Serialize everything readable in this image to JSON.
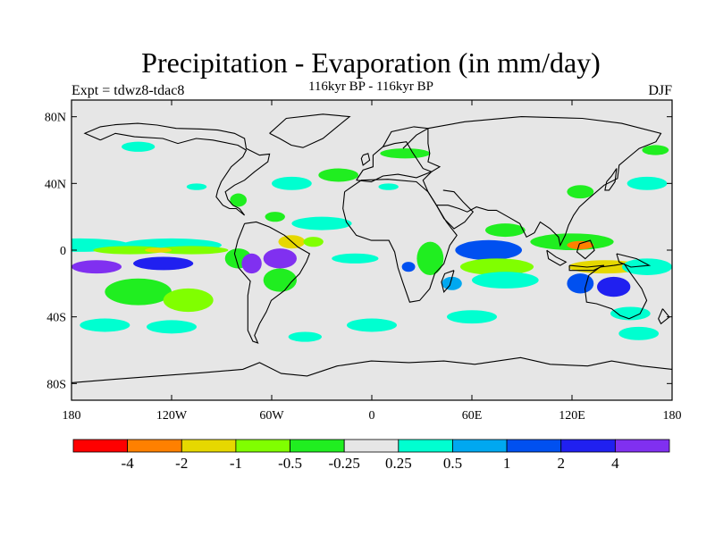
{
  "title": "Precipitation - Evaporation (in mm/day)",
  "subtitle": "116kyr BP - 116kyr BP",
  "experiment": "Expt = tdwz8-tdac8",
  "season": "DJF",
  "map": {
    "projection": "cylindrical equidistant",
    "lon_range": [
      -180,
      180
    ],
    "lat_range": [
      -90,
      90
    ],
    "background_color": "#e6e6e6",
    "lat_ticks": [
      {
        "lat": 80,
        "label": "80N"
      },
      {
        "lat": 40,
        "label": "40N"
      },
      {
        "lat": 0,
        "label": "0"
      },
      {
        "lat": -40,
        "label": "40S"
      },
      {
        "lat": -80,
        "label": "80S"
      }
    ],
    "lon_ticks": [
      {
        "lon": -180,
        "label": "180"
      },
      {
        "lon": -120,
        "label": "120W"
      },
      {
        "lon": -60,
        "label": "60W"
      },
      {
        "lon": 0,
        "label": "0"
      },
      {
        "lon": 60,
        "label": "60E"
      },
      {
        "lon": 120,
        "label": "120E"
      },
      {
        "lon": 180,
        "label": "180"
      }
    ]
  },
  "colorbar": {
    "colors": [
      "#ff0000",
      "#ff8000",
      "#e6d800",
      "#80ff00",
      "#20ee20",
      "#e6e6e6",
      "#00ffd0",
      "#00a8f0",
      "#0050f0",
      "#2020f0",
      "#8030f0"
    ],
    "labels": [
      "-4",
      "-2",
      "-1",
      "-0.5",
      "-0.25",
      "0.25",
      "0.5",
      "1",
      "2",
      "4"
    ]
  },
  "chart_data": {
    "type": "heatmap",
    "title": "Precipitation - Evaporation (in mm/day)",
    "subtitle": "116kyr BP - 116kyr BP",
    "levels": [
      -4,
      -2,
      -1,
      -0.5,
      -0.25,
      0.25,
      0.5,
      1,
      2,
      4
    ],
    "fields": [
      {
        "lon": -175,
        "lat": 3,
        "rlon": 30,
        "rlat": 4,
        "level": 6
      },
      {
        "lon": -120,
        "lat": 3,
        "rlon": 30,
        "rlat": 4,
        "level": 6
      },
      {
        "lon": -145,
        "lat": 0,
        "rlon": 22,
        "rlat": 2.5,
        "level": 3
      },
      {
        "lon": -108,
        "lat": 0,
        "rlon": 22,
        "rlat": 2.5,
        "level": 3
      },
      {
        "lon": -128,
        "lat": 0,
        "rlon": 8,
        "rlat": 1.5,
        "level": 2
      },
      {
        "lon": -165,
        "lat": -10,
        "rlon": 15,
        "rlat": 4,
        "level": 10
      },
      {
        "lon": -125,
        "lat": -8,
        "rlon": 18,
        "rlat": 4,
        "level": 9
      },
      {
        "lon": -140,
        "lat": -25,
        "rlon": 20,
        "rlat": 8,
        "level": 4
      },
      {
        "lon": -110,
        "lat": -30,
        "rlon": 15,
        "rlat": 7,
        "level": 3
      },
      {
        "lon": -160,
        "lat": -45,
        "rlon": 15,
        "rlat": 4,
        "level": 6
      },
      {
        "lon": -120,
        "lat": -46,
        "rlon": 15,
        "rlat": 4,
        "level": 6
      },
      {
        "lon": -80,
        "lat": -5,
        "rlon": 8,
        "rlat": 6,
        "level": 4
      },
      {
        "lon": -72,
        "lat": -8,
        "rlon": 6,
        "rlat": 6,
        "level": 10
      },
      {
        "lon": -55,
        "lat": -5,
        "rlon": 10,
        "rlat": 6,
        "level": 10
      },
      {
        "lon": -55,
        "lat": -18,
        "rlon": 10,
        "rlat": 7,
        "level": 4
      },
      {
        "lon": -48,
        "lat": 5,
        "rlon": 8,
        "rlat": 4,
        "level": 2
      },
      {
        "lon": -30,
        "lat": 16,
        "rlon": 18,
        "rlat": 4,
        "level": 6
      },
      {
        "lon": -35,
        "lat": 5,
        "rlon": 6,
        "rlat": 3,
        "level": 3
      },
      {
        "lon": -10,
        "lat": -5,
        "rlon": 14,
        "rlat": 3,
        "level": 6
      },
      {
        "lon": -48,
        "lat": 40,
        "rlon": 12,
        "rlat": 4,
        "level": 6
      },
      {
        "lon": -58,
        "lat": 20,
        "rlon": 6,
        "rlat": 3,
        "level": 4
      },
      {
        "lon": -105,
        "lat": 38,
        "rlon": 6,
        "rlat": 2,
        "level": 6
      },
      {
        "lon": -80,
        "lat": 30,
        "rlon": 5,
        "rlat": 4,
        "level": 4
      },
      {
        "lon": -20,
        "lat": 45,
        "rlon": 12,
        "rlat": 4,
        "level": 4
      },
      {
        "lon": 10,
        "lat": 38,
        "rlon": 6,
        "rlat": 2,
        "level": 6
      },
      {
        "lon": 35,
        "lat": -5,
        "rlon": 8,
        "rlat": 10,
        "level": 4
      },
      {
        "lon": 22,
        "lat": -10,
        "rlon": 4,
        "rlat": 3,
        "level": 8
      },
      {
        "lon": 48,
        "lat": -20,
        "rlon": 6,
        "rlat": 4,
        "level": 7
      },
      {
        "lon": 70,
        "lat": 0,
        "rlon": 20,
        "rlat": 6,
        "level": 8
      },
      {
        "lon": 75,
        "lat": -10,
        "rlon": 22,
        "rlat": 5,
        "level": 3
      },
      {
        "lon": 80,
        "lat": -18,
        "rlon": 20,
        "rlat": 5,
        "level": 6
      },
      {
        "lon": 80,
        "lat": 12,
        "rlon": 12,
        "rlat": 4,
        "level": 4
      },
      {
        "lon": 120,
        "lat": 5,
        "rlon": 25,
        "rlat": 5,
        "level": 4
      },
      {
        "lon": 125,
        "lat": 3,
        "rlon": 8,
        "rlat": 2.5,
        "level": 1
      },
      {
        "lon": 140,
        "lat": -10,
        "rlon": 22,
        "rlat": 4,
        "level": 2
      },
      {
        "lon": 145,
        "lat": -22,
        "rlon": 10,
        "rlat": 6,
        "level": 9
      },
      {
        "lon": 125,
        "lat": -20,
        "rlon": 8,
        "rlat": 6,
        "level": 8
      },
      {
        "lon": 165,
        "lat": -10,
        "rlon": 15,
        "rlat": 5,
        "level": 6
      },
      {
        "lon": 125,
        "lat": 35,
        "rlon": 8,
        "rlat": 4,
        "level": 4
      },
      {
        "lon": 165,
        "lat": 40,
        "rlon": 12,
        "rlat": 4,
        "level": 6
      },
      {
        "lon": 155,
        "lat": -38,
        "rlon": 12,
        "rlat": 4,
        "level": 6
      },
      {
        "lon": 160,
        "lat": -50,
        "rlon": 12,
        "rlat": 4,
        "level": 6
      },
      {
        "lon": 60,
        "lat": -40,
        "rlon": 15,
        "rlat": 4,
        "level": 6
      },
      {
        "lon": 0,
        "lat": -45,
        "rlon": 15,
        "rlat": 4,
        "level": 6
      },
      {
        "lon": -40,
        "lat": -52,
        "rlon": 10,
        "rlat": 3,
        "level": 6
      },
      {
        "lon": 170,
        "lat": 60,
        "rlon": 8,
        "rlat": 3,
        "level": 4
      },
      {
        "lon": -140,
        "lat": 62,
        "rlon": 10,
        "rlat": 3,
        "level": 6
      },
      {
        "lon": 20,
        "lat": 58,
        "rlon": 15,
        "rlat": 3,
        "level": 4
      }
    ]
  }
}
